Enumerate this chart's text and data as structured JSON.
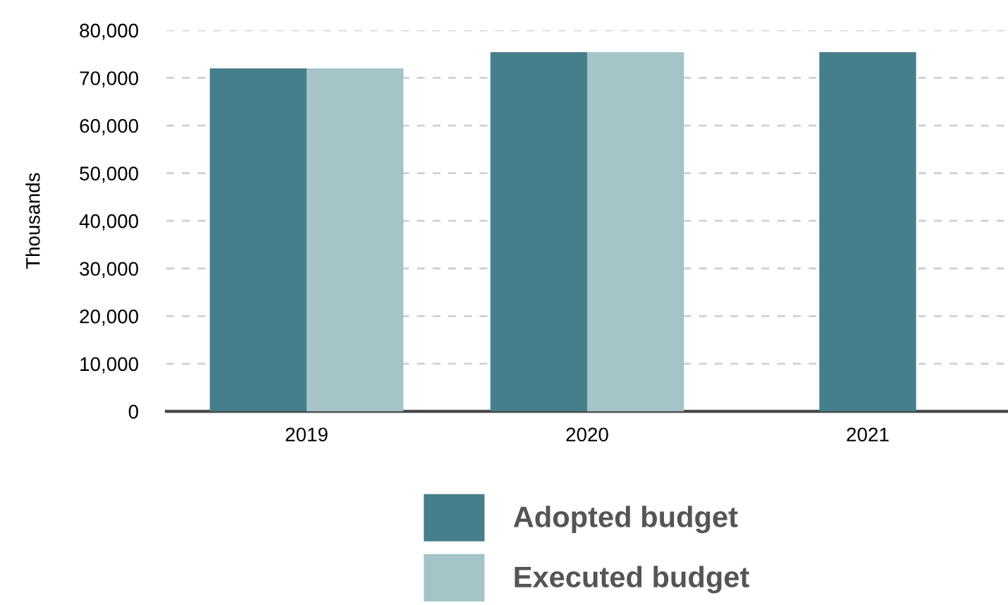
{
  "chart_data": {
    "type": "bar",
    "ylabel": "Thousands",
    "categories": [
      "2019",
      "2020",
      "2021"
    ],
    "series": [
      {
        "name": "Adopted budget",
        "color": "#467f8b",
        "values": [
          72000,
          75400,
          75400
        ]
      },
      {
        "name": "Executed budget",
        "color": "#a4c4c8",
        "values": [
          72000,
          75400,
          null
        ]
      }
    ],
    "ylim": [
      0,
      80000
    ],
    "yticks": [
      {
        "value": 0,
        "label": "0"
      },
      {
        "value": 10000,
        "label": "10,000"
      },
      {
        "value": 20000,
        "label": "20,000"
      },
      {
        "value": 30000,
        "label": "30,000"
      },
      {
        "value": 40000,
        "label": "40,000"
      },
      {
        "value": 50000,
        "label": "50,000"
      },
      {
        "value": 60000,
        "label": "60,000"
      },
      {
        "value": 70000,
        "label": "70,000"
      },
      {
        "value": 80000,
        "label": "80,000"
      }
    ],
    "grid": "y",
    "legend": "bottom"
  }
}
